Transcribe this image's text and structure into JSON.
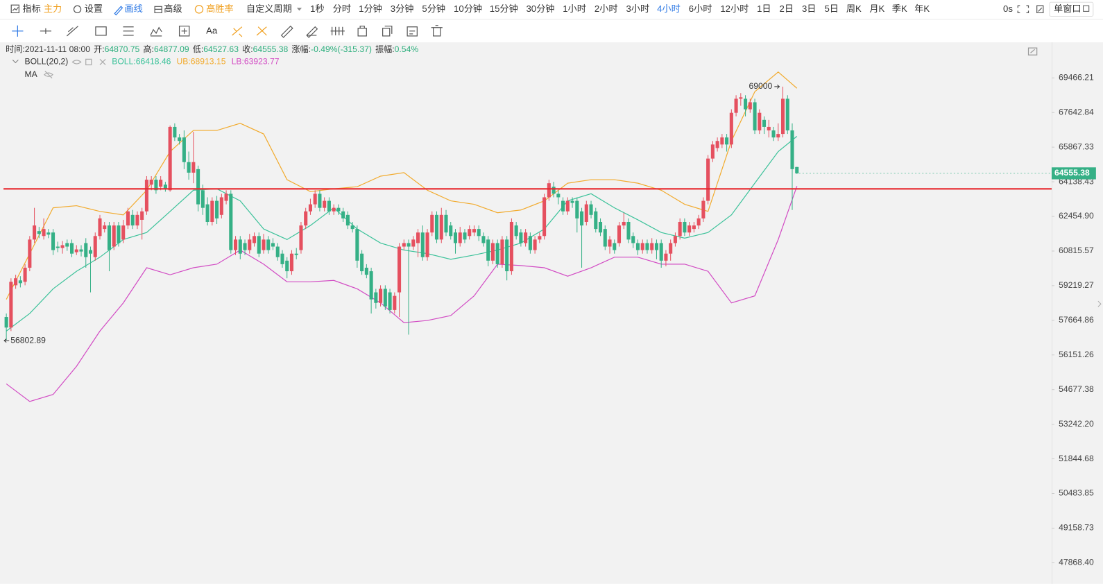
{
  "toolbar": {
    "left": [
      "指标",
      "主力",
      "设置",
      "画线",
      "高级",
      "高胜率",
      "自定义周期"
    ],
    "periods": [
      "1秒",
      "分时",
      "1分钟",
      "3分钟",
      "5分钟",
      "10分钟",
      "15分钟",
      "30分钟",
      "1小时",
      "2小时",
      "3小时",
      "4小时",
      "6小时",
      "12小时",
      "1日",
      "2日",
      "3日",
      "5日",
      "周K",
      "月K",
      "季K",
      "年K"
    ],
    "active_period": "4小时",
    "timer": "0s",
    "window": "单窗口",
    "font_tool": "Aa"
  },
  "info": {
    "labels": [
      "时间:",
      "开:",
      "高:",
      "低:",
      "收:",
      "涨幅:",
      "振幅:"
    ],
    "time": "2021-11-11 08:00",
    "change": "-0.49%(-315.37)",
    "amplitude": "0.54%"
  },
  "chart_data": {
    "type": "candlestick",
    "log": true,
    "ylim": [
      47098,
      71312
    ],
    "yticks": [
      69466.21,
      67642.84,
      65867.33,
      64138.43,
      {
        "value": 62454.9,
        "label": "62454.90"
      },
      60815.57,
      59219.27,
      57664.86,
      56151.26,
      54677.38,
      {
        "value": 53242.2,
        "label": "53242.20"
      },
      51844.68,
      50483.85,
      49158.73,
      {
        "value": 47868.4,
        "label": "47868.40"
      }
    ],
    "up_color": "#e5505f",
    "down_color": "#35b086",
    "indicator": "BOLL(20,2)",
    "ma_label": "MA",
    "hline": {
      "value": 63790,
      "color": "#e8262d"
    },
    "ohlc": [
      [
        57812,
        57968,
        56802.89,
        57345
      ],
      [
        57345,
        59557,
        57190,
        59396
      ],
      [
        59236,
        59718,
        59076,
        59557
      ],
      [
        59460,
        59653,
        59140,
        59332
      ],
      [
        59396,
        60205,
        59236,
        60042
      ],
      [
        60042,
        61521,
        59880,
        61355
      ],
      [
        61355,
        62867,
        61189,
        62022
      ],
      [
        61755,
        61955,
        61421,
        61621
      ],
      [
        61521,
        62359,
        61355,
        61855
      ],
      [
        61688,
        61855,
        61421,
        61588
      ],
      [
        61688,
        61855,
        60630,
        60860
      ],
      [
        61024,
        61255,
        60761,
        60958
      ],
      [
        60958,
        61288,
        60695,
        61090
      ],
      [
        61189,
        61355,
        60826,
        61024
      ],
      [
        61189,
        61355,
        60531,
        60695
      ],
      [
        60761,
        61090,
        60630,
        60892
      ],
      [
        60892,
        61090,
        60564,
        60793
      ],
      [
        61189,
        61421,
        60042,
        60531
      ],
      [
        60860,
        61024,
        58916,
        60695
      ],
      [
        60531,
        61688,
        60368,
        61521
      ],
      [
        61521,
        62528,
        61355,
        62359
      ],
      [
        61855,
        62190,
        61688,
        62022
      ],
      [
        62022,
        62190,
        59880,
        60860
      ],
      [
        61024,
        62190,
        60860,
        62022
      ],
      [
        62022,
        62190,
        61024,
        61189
      ],
      [
        61355,
        62291,
        61189,
        62022
      ],
      [
        62022,
        62867,
        61855,
        62697
      ],
      [
        62528,
        62765,
        61855,
        62022
      ],
      [
        62022,
        62697,
        61855,
        62528
      ],
      [
        62291,
        62867,
        61355,
        62697
      ],
      [
        62697,
        64415,
        62528,
        64241
      ],
      [
        63998,
        64415,
        63722,
        64241
      ],
      [
        64241,
        64415,
        63550,
        63722
      ],
      [
        63894,
        64415,
        63722,
        64241
      ],
      [
        63998,
        64136,
        63653,
        63791
      ],
      [
        63722,
        66972,
        63653,
        66900
      ],
      [
        66900,
        67081,
        66180,
        66359
      ],
      [
        66359,
        66539,
        66001,
        66180
      ],
      [
        66359,
        66719,
        64764,
        65115
      ],
      [
        65115,
        65645,
        64241,
        64589
      ],
      [
        64589,
        66647,
        64067,
        65115
      ],
      [
        64764,
        64939,
        62697,
        63037
      ],
      [
        63722,
        63998,
        62528,
        62867
      ],
      [
        63037,
        63378,
        62022,
        62190
      ],
      [
        62190,
        63378,
        62022,
        63207
      ],
      [
        63207,
        63447,
        62089,
        62359
      ],
      [
        62528,
        63550,
        62359,
        63378
      ],
      [
        63207,
        63722,
        63037,
        63550
      ],
      [
        63550,
        63722,
        60695,
        60860
      ],
      [
        60860,
        61521,
        60630,
        61355
      ],
      [
        61355,
        61521,
        60433,
        60695
      ],
      [
        61189,
        61355,
        60630,
        60860
      ],
      [
        60860,
        61621,
        60695,
        61355
      ],
      [
        61189,
        61688,
        61024,
        61521
      ],
      [
        61521,
        61688,
        60531,
        60695
      ],
      [
        60860,
        61621,
        60695,
        61355
      ],
      [
        61355,
        61521,
        60695,
        60860
      ],
      [
        61189,
        61421,
        60860,
        61024
      ],
      [
        61024,
        61189,
        60368,
        60531
      ],
      [
        60695,
        60860,
        60042,
        60205
      ],
      [
        60368,
        60531,
        59557,
        59880
      ],
      [
        59880,
        60860,
        59718,
        60695
      ],
      [
        60695,
        60958,
        60433,
        60630
      ],
      [
        60860,
        62190,
        60695,
        62022
      ],
      [
        62022,
        62867,
        61855,
        62697
      ],
      [
        62697,
        63310,
        62528,
        63037
      ],
      [
        63037,
        63722,
        62867,
        63550
      ],
      [
        63550,
        63722,
        62697,
        62867
      ],
      [
        62867,
        63378,
        62697,
        63207
      ],
      [
        63207,
        63378,
        62528,
        62697
      ],
      [
        62697,
        63037,
        62528,
        62867
      ],
      [
        62867,
        63037,
        62528,
        62697
      ],
      [
        62697,
        62867,
        62190,
        62359
      ],
      [
        62528,
        62697,
        61855,
        62022
      ],
      [
        62022,
        62190,
        61688,
        61855
      ],
      [
        61855,
        62022,
        60042,
        60368
      ],
      [
        60695,
        60860,
        59718,
        59880
      ],
      [
        60042,
        60205,
        59557,
        59718
      ],
      [
        59880,
        60042,
        57968,
        58598
      ],
      [
        58916,
        59076,
        58188,
        58440
      ],
      [
        58440,
        59236,
        58282,
        59076
      ],
      [
        59076,
        59236,
        58125,
        58282
      ],
      [
        58916,
        59076,
        57968,
        58125
      ],
      [
        58125,
        58916,
        57968,
        58757
      ],
      [
        58916,
        61189,
        57812,
        61024
      ],
      [
        61024,
        61355,
        60860,
        61189
      ],
      [
        61189,
        61355,
        57035,
        61024
      ],
      [
        61024,
        61521,
        60860,
        61355
      ],
      [
        61189,
        61855,
        60531,
        61688
      ],
      [
        61688,
        62022,
        60368,
        60531
      ],
      [
        60531,
        61855,
        60368,
        61688
      ],
      [
        61688,
        62697,
        61521,
        62528
      ],
      [
        62528,
        62697,
        61189,
        61355
      ],
      [
        61355,
        62867,
        61189,
        62528
      ],
      [
        62528,
        62765,
        61521,
        61688
      ],
      [
        62022,
        62190,
        61355,
        61521
      ],
      [
        61688,
        61855,
        60695,
        61189
      ],
      [
        61189,
        61955,
        61024,
        61688
      ],
      [
        61688,
        61855,
        61189,
        61355
      ],
      [
        61521,
        62022,
        61355,
        61855
      ],
      [
        61688,
        62022,
        61521,
        61855
      ],
      [
        61855,
        62022,
        61288,
        61521
      ],
      [
        61521,
        61688,
        61024,
        61189
      ],
      [
        61355,
        61521,
        60107,
        60368
      ],
      [
        60368,
        61355,
        60205,
        61189
      ],
      [
        61189,
        61355,
        60042,
        60205
      ],
      [
        60205,
        61521,
        60042,
        61355
      ],
      [
        61355,
        61521,
        59460,
        59880
      ],
      [
        59880,
        62359,
        59718,
        62190
      ],
      [
        62022,
        62190,
        61355,
        61521
      ],
      [
        61688,
        61855,
        61024,
        61189
      ],
      [
        61189,
        61855,
        61024,
        61688
      ],
      [
        61521,
        61688,
        60695,
        60860
      ],
      [
        60860,
        61521,
        60695,
        61355
      ],
      [
        61355,
        61688,
        61189,
        61521
      ],
      [
        61521,
        63550,
        61355,
        63378
      ],
      [
        63378,
        64241,
        63207,
        64067
      ],
      [
        63894,
        64136,
        63378,
        63550
      ],
      [
        63550,
        63722,
        63037,
        63378
      ],
      [
        63207,
        63378,
        62528,
        62697
      ],
      [
        62697,
        63378,
        62528,
        63207
      ],
      [
        63207,
        63378,
        62867,
        63105
      ],
      [
        63207,
        63378,
        61688,
        62359
      ],
      [
        62697,
        62867,
        60042,
        62022
      ],
      [
        62190,
        63207,
        62022,
        63037
      ],
      [
        63037,
        63207,
        62359,
        62528
      ],
      [
        62697,
        62867,
        61688,
        61855
      ],
      [
        62190,
        62359,
        61521,
        61688
      ],
      [
        61855,
        62022,
        60860,
        61024
      ],
      [
        61024,
        61521,
        60695,
        61355
      ],
      [
        61189,
        61355,
        60695,
        60860
      ],
      [
        61189,
        62190,
        61024,
        62022
      ],
      [
        62022,
        62630,
        61855,
        62190
      ],
      [
        62190,
        62359,
        61189,
        61355
      ],
      [
        61521,
        61688,
        60958,
        61189
      ],
      [
        61189,
        61355,
        60630,
        60860
      ],
      [
        60860,
        61355,
        60695,
        61189
      ],
      [
        61189,
        61355,
        60695,
        60860
      ],
      [
        60860,
        61421,
        60695,
        61189
      ],
      [
        61189,
        61355,
        60433,
        60860
      ],
      [
        61189,
        61355,
        60042,
        60368
      ],
      [
        60368,
        60860,
        60107,
        60695
      ],
      [
        60695,
        61355,
        60368,
        61189
      ],
      [
        61189,
        61688,
        61024,
        61521
      ],
      [
        61521,
        62359,
        61355,
        62190
      ],
      [
        62190,
        62359,
        61521,
        61688
      ],
      [
        61688,
        62190,
        61521,
        62022
      ],
      [
        61855,
        62190,
        61688,
        62022
      ],
      [
        62022,
        62528,
        61855,
        62359
      ],
      [
        62359,
        63378,
        62190,
        63207
      ],
      [
        63207,
        65468,
        63037,
        65292
      ],
      [
        65292,
        66180,
        65115,
        66001
      ],
      [
        65823,
        66359,
        65645,
        66180
      ],
      [
        66001,
        66539,
        65823,
        66359
      ],
      [
        66359,
        66539,
        65645,
        66001
      ],
      [
        66001,
        67810,
        65823,
        67627
      ],
      [
        67627,
        68547,
        67444,
        68362
      ],
      [
        68362,
        68658,
        67993,
        68436
      ],
      [
        68362,
        68547,
        67444,
        67810
      ],
      [
        67810,
        68362,
        67627,
        68177
      ],
      [
        68177,
        68362,
        66539,
        66719
      ],
      [
        66719,
        67810,
        66539,
        67627
      ],
      [
        67262,
        67444,
        66539,
        66900
      ],
      [
        66719,
        67262,
        66359,
        66900
      ],
      [
        66719,
        66900,
        66180,
        66359
      ],
      [
        66359,
        67081,
        66180,
        66539
      ],
      [
        66539,
        69000,
        66359,
        68362
      ],
      [
        68362,
        68547,
        66539,
        66719
      ],
      [
        66719,
        67081,
        62765,
        64764
      ],
      [
        64870.75,
        64877.09,
        64527.63,
        64555.38
      ]
    ],
    "series": [
      {
        "name": "BOLL:",
        "color": "#3cc29a",
        "x": [
          0,
          5,
          10,
          15,
          20,
          25,
          30,
          35,
          40,
          45,
          50,
          55,
          60,
          65,
          70,
          75,
          80,
          85,
          90,
          95,
          100,
          105,
          110,
          115,
          120,
          125,
          130,
          135,
          140,
          145,
          150,
          155,
          160,
          165,
          169
        ],
        "values": [
          57190,
          57968,
          59076,
          59880,
          60531,
          61355,
          61688,
          62697,
          63722,
          63791,
          63207,
          61855,
          61355,
          62022,
          62867,
          61855,
          61189,
          60860,
          60695,
          60433,
          60630,
          60860,
          61189,
          61855,
          63207,
          63550,
          62867,
          62291,
          61688,
          61421,
          61688,
          62528,
          64067,
          65645,
          66418.46
        ]
      },
      {
        "name": "UB:",
        "color": "#f2ab2e",
        "x": [
          0,
          5,
          10,
          15,
          20,
          25,
          30,
          35,
          40,
          45,
          50,
          55,
          60,
          65,
          70,
          75,
          80,
          85,
          90,
          95,
          100,
          105,
          110,
          115,
          120,
          125,
          130,
          135,
          140,
          145,
          150,
          155,
          160,
          165,
          169
        ],
        "values": [
          58598,
          60695,
          62867,
          62969,
          62697,
          62528,
          63722,
          65645,
          66719,
          66719,
          67081,
          66539,
          64241,
          63653,
          63791,
          63894,
          64415,
          64589,
          63722,
          63207,
          63037,
          62630,
          62765,
          63207,
          64067,
          64241,
          64241,
          64067,
          63722,
          63037,
          62697,
          66180,
          68733,
          69780,
          68913.15
        ]
      },
      {
        "name": "LB:",
        "color": "#d24cc4",
        "x": [
          0,
          5,
          10,
          15,
          20,
          25,
          30,
          35,
          40,
          45,
          50,
          55,
          60,
          65,
          70,
          75,
          80,
          85,
          90,
          95,
          100,
          105,
          110,
          115,
          120,
          125,
          130,
          135,
          140,
          145,
          150,
          155,
          160,
          165,
          169
        ],
        "values": [
          54917,
          54179,
          54473,
          55664,
          57190,
          58440,
          60042,
          59718,
          60042,
          60205,
          60860,
          60205,
          59396,
          59396,
          59460,
          59076,
          58440,
          57562,
          57656,
          57875,
          58757,
          60205,
          60140,
          60042,
          59653,
          60042,
          60531,
          60531,
          60205,
          60205,
          59880,
          58440,
          58757,
          61355,
          63923.77
        ]
      }
    ]
  }
}
